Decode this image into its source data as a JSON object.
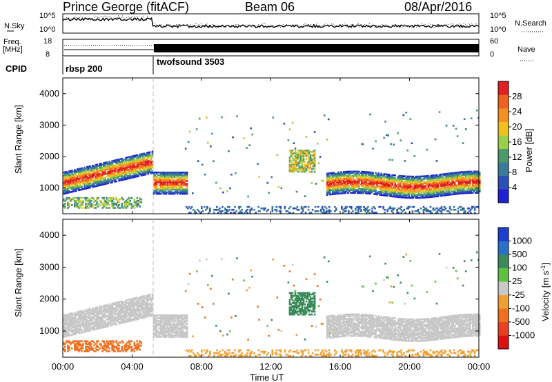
{
  "header": {
    "station": "Prince George (fitACF)",
    "beam": "Beam 06",
    "date": "08/Apr/2016"
  },
  "top_panels": {
    "nsky_label": "N.Sky",
    "nsearch_label": "N.Search",
    "freq_label_1": "Freq.",
    "freq_label_2": "[MHz]",
    "nave_label": "Nave",
    "cpid_label": "CPID",
    "left_ticks_noise": [
      "10^5",
      "10^0"
    ],
    "right_ticks_noise": [
      "10^5",
      "10^0"
    ],
    "left_ticks_freq": [
      "18",
      "8"
    ],
    "right_ticks_nave": [
      "60",
      "0"
    ],
    "cpid_segments": [
      {
        "name": "rbsp 200",
        "start_hour": 0.0
      },
      {
        "name": "twofsound 3503",
        "start_hour": 5.2
      }
    ]
  },
  "chart_data": [
    {
      "type": "heatmap",
      "panel": "power",
      "xlabel": "Time UT",
      "ylabel": "Slant Range [km]",
      "xlim": [
        0,
        24
      ],
      "ylim": [
        180,
        4500
      ],
      "yticks": [
        "1000",
        "2000",
        "3000",
        "4000"
      ],
      "colorbar": {
        "label": "Power [dB]",
        "ticks": [
          "4",
          "8",
          "12",
          "16",
          "20",
          "24",
          "28"
        ],
        "range": [
          0,
          30
        ],
        "colors": [
          "#1f1fd6",
          "#2a4fb8",
          "#3a7a9a",
          "#4c9a6a",
          "#9ad04a",
          "#f0c020",
          "#f59020",
          "#f06020",
          "#e02020"
        ]
      },
      "features": [
        {
          "t0": 0.0,
          "t1": 5.2,
          "r_center": 1250,
          "trend": "rising to 1900"
        },
        {
          "t0": 5.2,
          "t1": 7.0,
          "r_center": 1150
        },
        {
          "t0": 15.2,
          "t1": 24.0,
          "r_center": 1150
        }
      ]
    },
    {
      "type": "heatmap",
      "panel": "velocity",
      "xlabel": "Time UT",
      "ylabel": "Slant Range [km]",
      "xlim": [
        0,
        24
      ],
      "ylim": [
        180,
        4500
      ],
      "yticks": [
        "1000",
        "2000",
        "3000",
        "4000"
      ],
      "colorbar": {
        "label": "Velocity [m s-1]",
        "label_main": "Velocity",
        "label_unit": "[m s",
        "label_exp": "-1",
        "label_close": "]",
        "ticks": [
          "1000",
          "500",
          "100",
          "25",
          "-25",
          "-100",
          "-500",
          "-1000"
        ],
        "colors": [
          "#1c3fd0",
          "#2a70c8",
          "#3c8a5a",
          "#5dc040",
          "#c8c8c8",
          "#f0a030",
          "#f07020",
          "#e84020",
          "#e01010"
        ]
      }
    }
  ],
  "x_axis": {
    "ticks": [
      "00:00",
      "04:00",
      "08:00",
      "12:00",
      "16:00",
      "20:00",
      "00:00"
    ],
    "label": "Time UT"
  }
}
